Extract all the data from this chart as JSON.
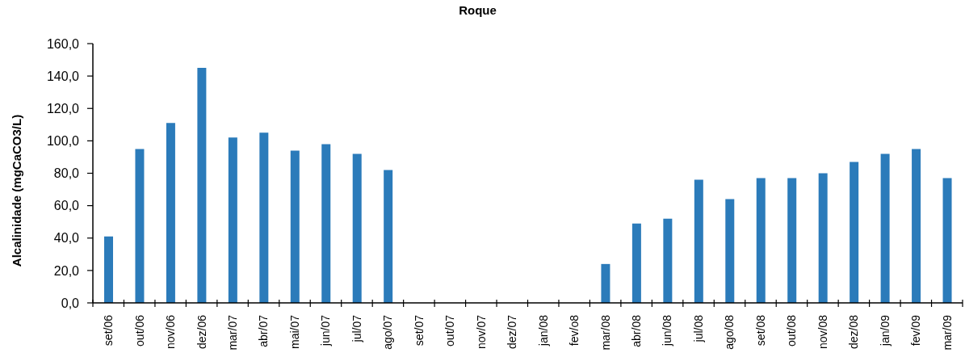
{
  "chart_data": {
    "type": "bar",
    "title": "Roque",
    "ylabel": "Alcalinidade (mgCaCO3/L)",
    "categories": [
      "set/06",
      "out/06",
      "nov/06",
      "dez/06",
      "mar/07",
      "abr/07",
      "mai/07",
      "jun/07",
      "jul/07",
      "ago/07",
      "set/07",
      "out/07",
      "nov/07",
      "dez/07",
      "jan/08",
      "fev/o8",
      "mar/08",
      "abr/08",
      "jun/08",
      "jul/08",
      "ago/08",
      "set/08",
      "out/08",
      "nov/08",
      "dez/08",
      "jan/09",
      "fev/09",
      "mar/09"
    ],
    "values": [
      41,
      95,
      111,
      145,
      102,
      105,
      94,
      98,
      92,
      82,
      null,
      null,
      null,
      null,
      null,
      null,
      24,
      49,
      52,
      76,
      64,
      77,
      77,
      80,
      87,
      92,
      95,
      77
    ],
    "color": "#2b7bba",
    "ylim": [
      0,
      160
    ],
    "yticks": [
      {
        "value": 0,
        "label": "0,0"
      },
      {
        "value": 20,
        "label": "20,0"
      },
      {
        "value": 40,
        "label": "40,0"
      },
      {
        "value": 60,
        "label": "60,0"
      },
      {
        "value": 80,
        "label": "80,0"
      },
      {
        "value": 100,
        "label": "100,0"
      },
      {
        "value": 120,
        "label": "120,0"
      },
      {
        "value": 140,
        "label": "140,0"
      },
      {
        "value": 160,
        "label": "160,0"
      }
    ]
  }
}
